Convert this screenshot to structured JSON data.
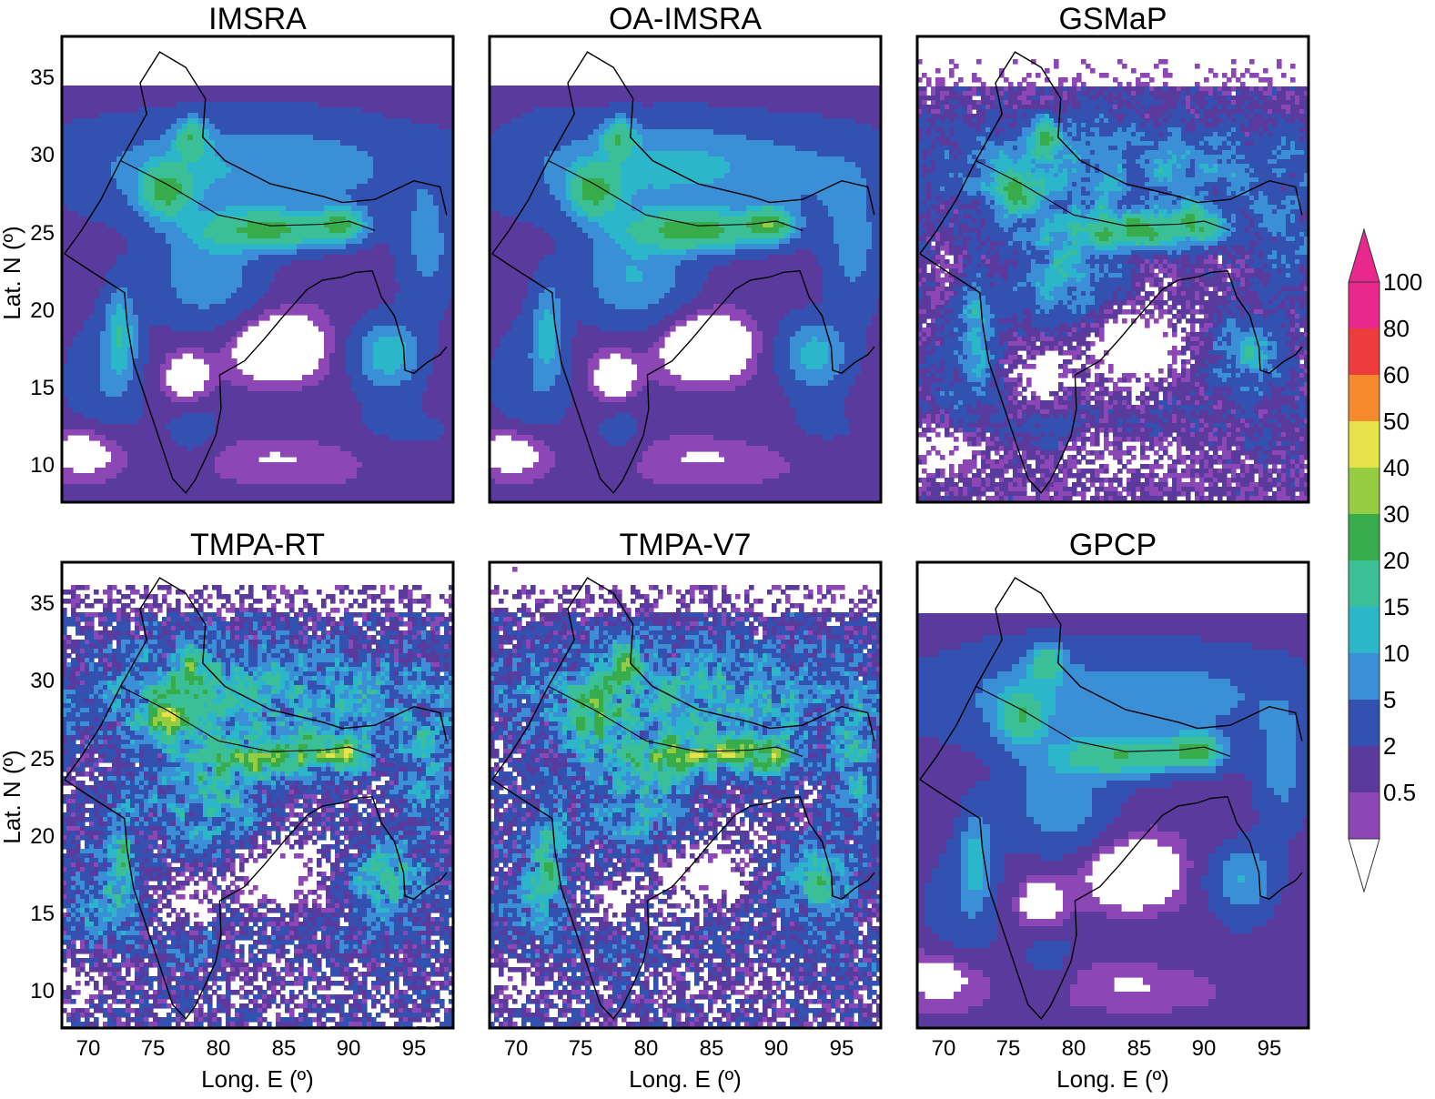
{
  "figure": {
    "panels": [
      {
        "title": "IMSRA",
        "style": "smooth"
      },
      {
        "title": "OA-IMSRA",
        "style": "smooth"
      },
      {
        "title": "GSMaP",
        "style": "patchy"
      },
      {
        "title": "TMPA-RT",
        "style": "noisy"
      },
      {
        "title": "TMPA-V7",
        "style": "noisy"
      },
      {
        "title": "GPCP",
        "style": "coarse"
      }
    ],
    "x_axis": {
      "label": "Long. E (º)",
      "ticks": [
        "70",
        "75",
        "80",
        "85",
        "90",
        "95"
      ],
      "range": [
        68,
        98
      ]
    },
    "y_axis": {
      "label": "Lat. N (º)",
      "ticks": [
        "35",
        "30",
        "25",
        "20",
        "15",
        "10"
      ],
      "range": [
        7.5,
        37.5
      ]
    },
    "colorbar": {
      "labels": [
        "100",
        "80",
        "60",
        "50",
        "40",
        "30",
        "20",
        "15",
        "10",
        "5",
        "2",
        "0.5"
      ],
      "colors": [
        "#e8288c",
        "#ee3b3b",
        "#f58a2c",
        "#e6e34a",
        "#95cc42",
        "#38ab4a",
        "#3bbf96",
        "#2bb6c9",
        "#3b8fd6",
        "#3351b0",
        "#5b3a9e",
        "#8d46b5"
      ],
      "extend_low_color": "#ffffff",
      "extend_high_color": "#e8288c"
    }
  }
}
